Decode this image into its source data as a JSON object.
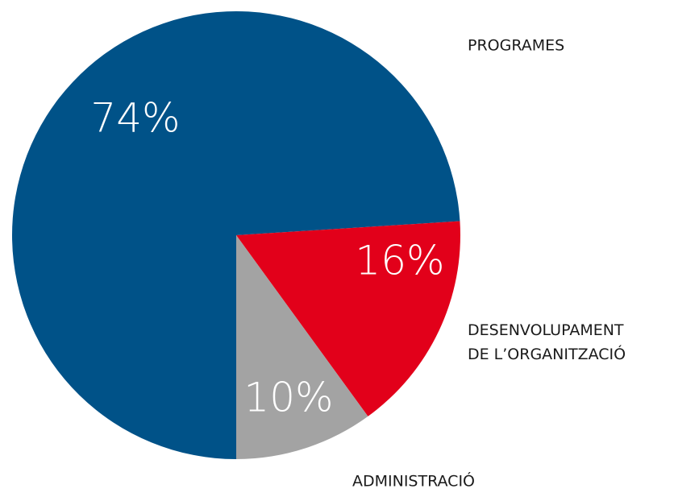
{
  "chart_data": {
    "type": "pie",
    "categories": [
      "PROGRAMES",
      "DESENVOLUPAMENT DE L’ORGANITZACIÓ",
      "ADMINISTRACIÓ"
    ],
    "values": [
      74,
      16,
      10
    ],
    "value_labels": [
      "74%",
      "16%",
      "10%"
    ],
    "colors": [
      "#005288",
      "#e2001a",
      "#a3a3a3"
    ]
  }
}
